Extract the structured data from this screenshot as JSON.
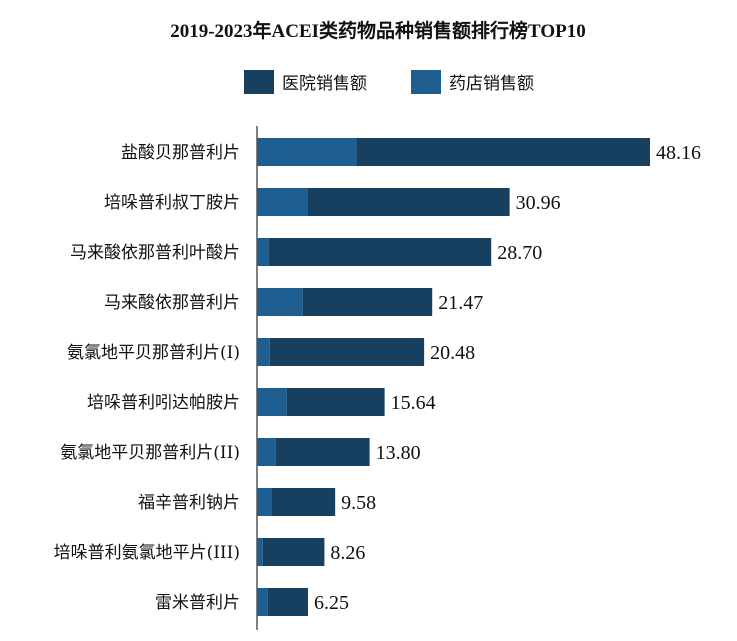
{
  "chart_data": {
    "type": "bar",
    "orientation": "horizontal",
    "stacked": true,
    "title": "2019-2023年ACEI类药物品种销售额排行榜TOP10",
    "xlabel": "",
    "ylabel": "",
    "legend_position": "top",
    "categories": [
      "盐酸贝那普利片",
      "培哚普利叔丁胺片",
      "马来酸依那普利叶酸片",
      "马来酸依那普利片",
      "氨氯地平贝那普利片(I)",
      "培哚普利吲达帕胺片",
      "氨氯地平贝那普利片(II)",
      "福辛普利钠片",
      "培哚普利氨氯地平片(III)",
      "雷米普利片"
    ],
    "totals": [
      "48.16",
      "30.96",
      "28.70",
      "21.47",
      "20.48",
      "15.64",
      "13.80",
      "9.58",
      "8.26",
      "6.25"
    ],
    "series": [
      {
        "name": "医院销售额",
        "color": "#163f60",
        "values": [
          35.96,
          24.71,
          27.27,
          15.87,
          18.92,
          12.0,
          11.51,
          7.83,
          7.56,
          4.94
        ]
      },
      {
        "name": "药店销售额",
        "color": "#1f5e90",
        "values": [
          12.2,
          6.25,
          1.43,
          5.6,
          1.56,
          3.64,
          2.29,
          1.75,
          0.7,
          1.31
        ]
      }
    ],
    "xlim": [
      0,
      50
    ],
    "grid": false
  }
}
